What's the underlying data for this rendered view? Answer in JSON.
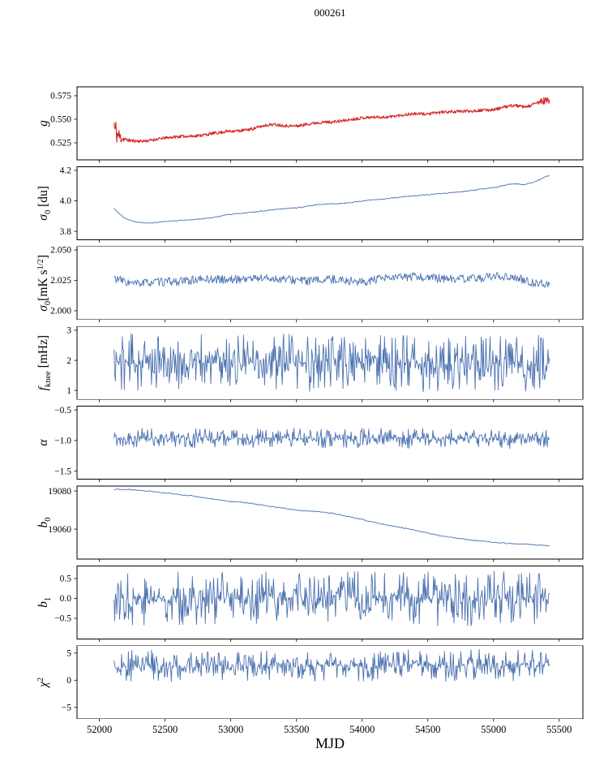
{
  "chart_data": {
    "type": "line",
    "title": "000261",
    "xlabel": "MJD",
    "x_range": [
      51830,
      55680
    ],
    "x_data_range": [
      52112,
      55425
    ],
    "xticks": [
      52000,
      52500,
      53000,
      53500,
      54000,
      54500,
      55000,
      55500
    ],
    "xtick_labels": [
      "52000",
      "52500",
      "53000",
      "53500",
      "54000",
      "54500",
      "55000",
      "55500"
    ],
    "panels": [
      {
        "name": "g",
        "ylabel": [
          {
            "t": "g",
            "i": true
          }
        ],
        "color": "#d62728",
        "lw": 1.1,
        "ylim": [
          0.5069,
          0.5845
        ],
        "yticks": [
          0.525,
          0.55,
          0.575
        ],
        "ytick_labels": [
          "0.525",
          "0.550",
          "0.575"
        ],
        "samples": 950,
        "seed": 11,
        "heavy": false,
        "noise_anchors": [
          [
            52112,
            0.0115
          ],
          [
            52150,
            0.009
          ],
          [
            52195,
            0.002
          ],
          [
            52300,
            0.0016
          ],
          [
            55320,
            0.0016
          ],
          [
            55365,
            0.0045
          ],
          [
            55425,
            0.0045
          ]
        ],
        "mean": [
          [
            52112,
            0.546
          ],
          [
            52118,
            0.537
          ],
          [
            52125,
            0.5405
          ],
          [
            52132,
            0.534
          ],
          [
            52140,
            0.5335
          ],
          [
            52150,
            0.532
          ],
          [
            52165,
            0.5305
          ],
          [
            52180,
            0.5295
          ],
          [
            52200,
            0.5285
          ],
          [
            52230,
            0.5275
          ],
          [
            52270,
            0.527
          ],
          [
            52320,
            0.5268
          ],
          [
            52370,
            0.5272
          ],
          [
            52420,
            0.5285
          ],
          [
            52470,
            0.5295
          ],
          [
            52520,
            0.5305
          ],
          [
            52570,
            0.5312
          ],
          [
            52620,
            0.5318
          ],
          [
            52670,
            0.532
          ],
          [
            52720,
            0.5322
          ],
          [
            52770,
            0.533
          ],
          [
            52820,
            0.5338
          ],
          [
            52870,
            0.5352
          ],
          [
            52920,
            0.536
          ],
          [
            52970,
            0.5372
          ],
          [
            53020,
            0.5376
          ],
          [
            53070,
            0.5378
          ],
          [
            53120,
            0.5388
          ],
          [
            53170,
            0.54
          ],
          [
            53220,
            0.542
          ],
          [
            53270,
            0.5438
          ],
          [
            53320,
            0.5445
          ],
          [
            53370,
            0.544
          ],
          [
            53420,
            0.5432
          ],
          [
            53470,
            0.5428
          ],
          [
            53520,
            0.5432
          ],
          [
            53570,
            0.5445
          ],
          [
            53620,
            0.5458
          ],
          [
            53670,
            0.5465
          ],
          [
            53720,
            0.547
          ],
          [
            53770,
            0.5472
          ],
          [
            53820,
            0.5478
          ],
          [
            53870,
            0.5488
          ],
          [
            53920,
            0.5498
          ],
          [
            53970,
            0.551
          ],
          [
            54020,
            0.5518
          ],
          [
            54070,
            0.5522
          ],
          [
            54120,
            0.5524
          ],
          [
            54170,
            0.5522
          ],
          [
            54220,
            0.5528
          ],
          [
            54270,
            0.5538
          ],
          [
            54320,
            0.5548
          ],
          [
            54370,
            0.5556
          ],
          [
            54420,
            0.5558
          ],
          [
            54470,
            0.5556
          ],
          [
            54520,
            0.556
          ],
          [
            54570,
            0.557
          ],
          [
            54620,
            0.5576
          ],
          [
            54670,
            0.558
          ],
          [
            54720,
            0.5582
          ],
          [
            54770,
            0.5585
          ],
          [
            54820,
            0.5588
          ],
          [
            54870,
            0.5592
          ],
          [
            54920,
            0.5596
          ],
          [
            54970,
            0.56
          ],
          [
            55020,
            0.5608
          ],
          [
            55070,
            0.5625
          ],
          [
            55120,
            0.564
          ],
          [
            55160,
            0.5648
          ],
          [
            55200,
            0.5638
          ],
          [
            55240,
            0.5628
          ],
          [
            55280,
            0.5645
          ],
          [
            55320,
            0.5668
          ],
          [
            55360,
            0.5688
          ],
          [
            55395,
            0.5698
          ],
          [
            55425,
            0.569
          ]
        ]
      },
      {
        "name": "sigma0-du",
        "ylabel": [
          {
            "t": "σ",
            "i": true
          },
          {
            "t": "0",
            "sub": true
          },
          {
            "t": " [du]"
          }
        ],
        "color": "#4c72b0",
        "lw": 0.9,
        "ylim": [
          3.745,
          4.2245
        ],
        "yticks": [
          3.8,
          4.0,
          4.2
        ],
        "ytick_labels": [
          "3.8",
          "4.0",
          "4.2"
        ],
        "samples": 460,
        "seed": 22,
        "heavy": false,
        "noise_amp": 0.003,
        "mean": [
          [
            52112,
            3.952
          ],
          [
            52150,
            3.915
          ],
          [
            52200,
            3.885
          ],
          [
            52260,
            3.865
          ],
          [
            52330,
            3.857
          ],
          [
            52400,
            3.856
          ],
          [
            52470,
            3.862
          ],
          [
            52550,
            3.868
          ],
          [
            52630,
            3.873
          ],
          [
            52710,
            3.877
          ],
          [
            52790,
            3.882
          ],
          [
            52870,
            3.892
          ],
          [
            52950,
            3.905
          ],
          [
            53030,
            3.915
          ],
          [
            53110,
            3.92
          ],
          [
            53190,
            3.928
          ],
          [
            53270,
            3.937
          ],
          [
            53350,
            3.945
          ],
          [
            53430,
            3.951
          ],
          [
            53510,
            3.955
          ],
          [
            53590,
            3.965
          ],
          [
            53670,
            3.975
          ],
          [
            53750,
            3.98
          ],
          [
            53830,
            3.983
          ],
          [
            53910,
            3.988
          ],
          [
            53990,
            3.998
          ],
          [
            54070,
            4.006
          ],
          [
            54150,
            4.012
          ],
          [
            54230,
            4.018
          ],
          [
            54310,
            4.026
          ],
          [
            54390,
            4.032
          ],
          [
            54470,
            4.038
          ],
          [
            54550,
            4.044
          ],
          [
            54630,
            4.05
          ],
          [
            54710,
            4.057
          ],
          [
            54790,
            4.063
          ],
          [
            54870,
            4.072
          ],
          [
            54950,
            4.082
          ],
          [
            55030,
            4.092
          ],
          [
            55110,
            4.108
          ],
          [
            55170,
            4.112
          ],
          [
            55230,
            4.105
          ],
          [
            55290,
            4.12
          ],
          [
            55350,
            4.14
          ],
          [
            55400,
            4.16
          ],
          [
            55425,
            4.168
          ]
        ]
      },
      {
        "name": "sigma0-mks",
        "ylabel": [
          {
            "t": "σ",
            "i": true
          },
          {
            "t": "0",
            "sub": true
          },
          {
            "t": "[mK s"
          },
          {
            "t": "1/2",
            "sup": true
          },
          {
            "t": "]"
          }
        ],
        "color": "#4c72b0",
        "lw": 0.9,
        "ylim": [
          1.9928,
          2.0528
        ],
        "yticks": [
          2.0,
          2.025,
          2.05
        ],
        "ytick_labels": [
          "2.000",
          "2.025",
          "2.050"
        ],
        "samples": 620,
        "seed": 33,
        "heavy": false,
        "noise_amp": 0.0035,
        "mean": [
          [
            52112,
            2.027
          ],
          [
            52250,
            2.022
          ],
          [
            52400,
            2.0235
          ],
          [
            52600,
            2.024
          ],
          [
            52800,
            2.026
          ],
          [
            53000,
            2.0255
          ],
          [
            53200,
            2.027
          ],
          [
            53400,
            2.026
          ],
          [
            53600,
            2.0245
          ],
          [
            53800,
            2.026
          ],
          [
            54000,
            2.0235
          ],
          [
            54200,
            2.027
          ],
          [
            54400,
            2.028
          ],
          [
            54600,
            2.0265
          ],
          [
            54800,
            2.026
          ],
          [
            55000,
            2.028
          ],
          [
            55100,
            2.0285
          ],
          [
            55200,
            2.026
          ],
          [
            55300,
            2.023
          ],
          [
            55425,
            2.022
          ]
        ]
      },
      {
        "name": "f-knee",
        "ylabel": [
          {
            "t": "f",
            "i": true
          },
          {
            "t": "knee",
            "sub": true
          },
          {
            "t": " [mHz]"
          }
        ],
        "color": "#4c72b0",
        "lw": 0.9,
        "ylim": [
          0.7,
          3.13
        ],
        "yticks": [
          1,
          2,
          3
        ],
        "ytick_labels": [
          "1",
          "2",
          "3"
        ],
        "samples": 640,
        "seed": 44,
        "heavy": true,
        "noise_amp": 0.32,
        "mean": [
          [
            52112,
            1.95
          ],
          [
            52600,
            1.9
          ],
          [
            53100,
            1.95
          ],
          [
            53600,
            1.9
          ],
          [
            54100,
            1.95
          ],
          [
            54600,
            1.88
          ],
          [
            55100,
            1.95
          ],
          [
            55425,
            1.9
          ]
        ]
      },
      {
        "name": "alpha",
        "ylabel": [
          {
            "t": "α",
            "i": true
          }
        ],
        "color": "#4c72b0",
        "lw": 0.9,
        "ylim": [
          -1.632,
          -0.44
        ],
        "yticks": [
          -1.5,
          -1.0,
          -0.5
        ],
        "ytick_labels": [
          "−1.5",
          "−1.0",
          "−0.5"
        ],
        "samples": 640,
        "seed": 55,
        "heavy": true,
        "noise_amp": 0.055,
        "mean": [
          [
            52112,
            -0.96
          ],
          [
            53000,
            -0.965
          ],
          [
            54000,
            -0.96
          ],
          [
            55425,
            -0.97
          ]
        ]
      },
      {
        "name": "b0",
        "ylabel": [
          {
            "t": "b",
            "i": true
          },
          {
            "t": "0",
            "sub": true
          }
        ],
        "color": "#4c72b0",
        "lw": 0.9,
        "ylim": [
          19044.3,
          19082.6
        ],
        "yticks": [
          19060,
          19080
        ],
        "ytick_labels": [
          "19060",
          "19080"
        ],
        "samples": 460,
        "seed": 66,
        "heavy": false,
        "noise_amp": 0.25,
        "mean": [
          [
            52112,
            19081
          ],
          [
            52300,
            19080.5
          ],
          [
            52500,
            19079
          ],
          [
            52700,
            19077.5
          ],
          [
            52900,
            19075.5
          ],
          [
            53000,
            19074.5
          ],
          [
            53100,
            19074
          ],
          [
            53300,
            19072
          ],
          [
            53500,
            19070
          ],
          [
            53700,
            19069
          ],
          [
            53800,
            19068
          ],
          [
            53900,
            19066.5
          ],
          [
            54000,
            19065
          ],
          [
            54100,
            19063.5
          ],
          [
            54200,
            19062
          ],
          [
            54300,
            19060.8
          ],
          [
            54400,
            19059.5
          ],
          [
            54500,
            19058
          ],
          [
            54600,
            19056.5
          ],
          [
            54700,
            19055.5
          ],
          [
            54800,
            19054.5
          ],
          [
            54900,
            19053.8
          ],
          [
            55000,
            19053.2
          ],
          [
            55100,
            19052.6
          ],
          [
            55200,
            19052.2
          ],
          [
            55300,
            19051.8
          ],
          [
            55425,
            19051.3
          ]
        ]
      },
      {
        "name": "b1",
        "ylabel": [
          {
            "t": "b",
            "i": true
          },
          {
            "t": "1",
            "sub": true
          }
        ],
        "color": "#4c72b0",
        "lw": 0.9,
        "ylim": [
          -1.019,
          0.818
        ],
        "yticks": [
          -0.5,
          0.0,
          0.5
        ],
        "ytick_labels": [
          "−0.5",
          "0.0",
          "0.5"
        ],
        "samples": 640,
        "seed": 77,
        "heavy": true,
        "noise_amp": 0.23,
        "mean": [
          [
            52112,
            0.0
          ],
          [
            55425,
            0.0
          ]
        ]
      },
      {
        "name": "chi2",
        "ylabel": [
          {
            "t": "χ",
            "i": true
          },
          {
            "t": "2",
            "sup": true
          }
        ],
        "color": "#4c72b0",
        "lw": 0.9,
        "ylim": [
          -7.09,
          6.34
        ],
        "yticks": [
          -5,
          0,
          5
        ],
        "ytick_labels": [
          "−5",
          "0",
          "5"
        ],
        "samples": 640,
        "seed": 88,
        "heavy": true,
        "noise_amp": 0.95,
        "mean": [
          [
            52112,
            2.4
          ],
          [
            52350,
            2.9
          ],
          [
            52600,
            2.3
          ],
          [
            52850,
            2.9
          ],
          [
            53100,
            2.4
          ],
          [
            53350,
            2.9
          ],
          [
            53600,
            2.5
          ],
          [
            53850,
            3.0
          ],
          [
            54100,
            2.4
          ],
          [
            54350,
            2.9
          ],
          [
            54600,
            2.4
          ],
          [
            54850,
            3.0
          ],
          [
            55100,
            2.5
          ],
          [
            55300,
            3.0
          ],
          [
            55425,
            3.1
          ]
        ]
      }
    ]
  }
}
